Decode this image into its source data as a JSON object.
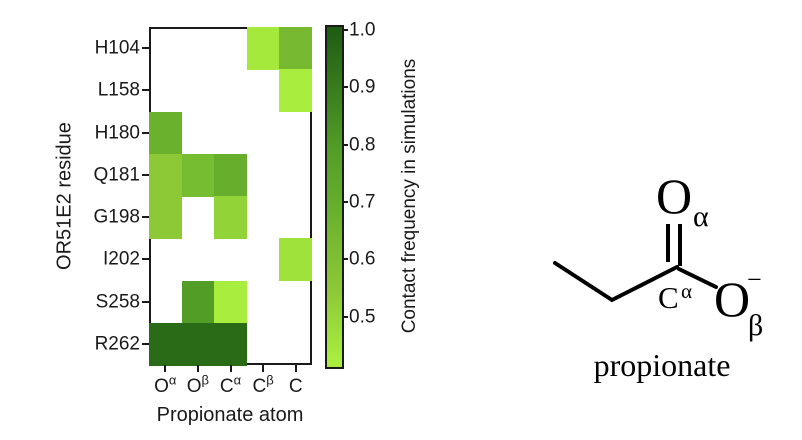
{
  "chart_data": {
    "type": "heatmap",
    "xlabel": "Propionate atom",
    "ylabel": "OR51E2 residue",
    "x_categories": [
      {
        "base": "O",
        "sup": "α"
      },
      {
        "base": "O",
        "sup": "β"
      },
      {
        "base": "C",
        "sup": "α"
      },
      {
        "base": "C",
        "sup": "β"
      },
      {
        "base": "C",
        "sup": ""
      }
    ],
    "y_categories": [
      "H104",
      "L158",
      "H180",
      "Q181",
      "G198",
      "I202",
      "S258",
      "R262"
    ],
    "cells": [
      {
        "residue": "H104",
        "atom_index": 3,
        "value": 0.44,
        "color": "#a5e93d"
      },
      {
        "residue": "H104",
        "atom_index": 4,
        "value": 0.63,
        "color": "#77b931"
      },
      {
        "residue": "L158",
        "atom_index": 4,
        "value": 0.42,
        "color": "#a9ed3f"
      },
      {
        "residue": "H180",
        "atom_index": 0,
        "value": 0.68,
        "color": "#6ab22d"
      },
      {
        "residue": "Q181",
        "atom_index": 0,
        "value": 0.54,
        "color": "#8dc937"
      },
      {
        "residue": "Q181",
        "atom_index": 1,
        "value": 0.63,
        "color": "#76bd32"
      },
      {
        "residue": "Q181",
        "atom_index": 2,
        "value": 0.7,
        "color": "#66ae2c"
      },
      {
        "residue": "G198",
        "atom_index": 0,
        "value": 0.54,
        "color": "#8dc937"
      },
      {
        "residue": "G198",
        "atom_index": 2,
        "value": 0.52,
        "color": "#92d438"
      },
      {
        "residue": "I202",
        "atom_index": 4,
        "value": 0.46,
        "color": "#9fe23c"
      },
      {
        "residue": "S258",
        "atom_index": 1,
        "value": 0.78,
        "color": "#529d26"
      },
      {
        "residue": "S258",
        "atom_index": 2,
        "value": 0.42,
        "color": "#a9ee3f"
      },
      {
        "residue": "R262",
        "atom_index": 0,
        "value": 0.95,
        "color": "#2a6b18"
      },
      {
        "residue": "R262",
        "atom_index": 1,
        "value": 0.95,
        "color": "#2a6b18"
      },
      {
        "residue": "R262",
        "atom_index": 2,
        "value": 0.95,
        "color": "#2a6b18"
      }
    ],
    "colorbar": {
      "label": "Contact frequency in simulations",
      "tick_labels": [
        "1.0",
        "0.9",
        "0.8",
        "0.7",
        "0.6",
        "0.5"
      ],
      "vmax": 1.0,
      "vmin_shown": 0.5,
      "top_color": "#1e5c12",
      "bottom_color": "#ace93f"
    },
    "legend_position": "right",
    "grid": false
  },
  "structure": {
    "caption": "propionate",
    "o_alpha_symbol": "O",
    "o_alpha_sub": "α",
    "c_alpha_symbol": "C",
    "c_alpha_sup": "α",
    "o_beta_symbol": "O",
    "o_beta_charge": "−",
    "o_beta_sub": "β"
  }
}
